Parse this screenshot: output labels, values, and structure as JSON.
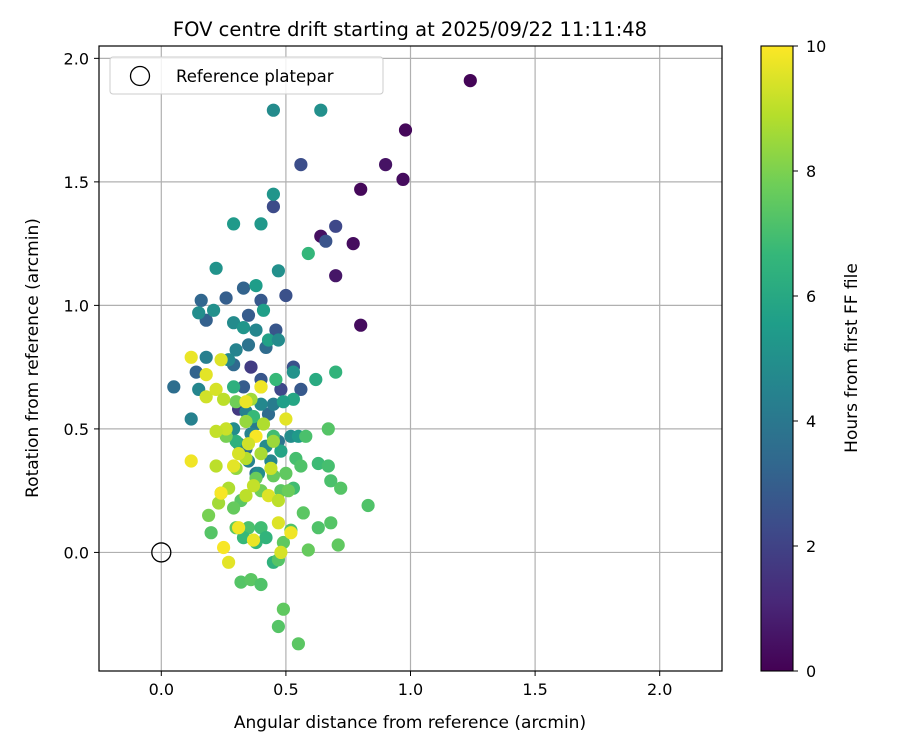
{
  "chart_data": {
    "type": "scatter",
    "title": "FOV centre drift starting at 2025/09/22 11:11:48",
    "xlabel": "Angular distance from reference (arcmin)",
    "ylabel": "Rotation from reference (arcmin)",
    "xlim": [
      -0.25,
      2.25
    ],
    "ylim": [
      -0.48,
      2.05
    ],
    "xticks": [
      0.0,
      0.5,
      1.0,
      1.5,
      2.0
    ],
    "xtick_labels": [
      "0.0",
      "0.5",
      "1.0",
      "1.5",
      "2.0"
    ],
    "yticks": [
      0.0,
      0.5,
      1.0,
      1.5,
      2.0
    ],
    "ytick_labels": [
      "0.0",
      "0.5",
      "1.0",
      "1.5",
      "2.0"
    ],
    "grid": true,
    "legend": {
      "label": "Reference platepar",
      "location": "upper-left"
    },
    "reference_point": {
      "x": 0.0,
      "y": 0.0
    },
    "colorbar": {
      "label": "Hours from first FF file",
      "range": [
        0,
        10
      ],
      "ticks": [
        0,
        2,
        4,
        6,
        8,
        10
      ],
      "tick_labels": [
        "0",
        "2",
        "4",
        "6",
        "8",
        "10"
      ],
      "colormap": "viridis",
      "stops": [
        "#440154",
        "#482878",
        "#3e4989",
        "#31688e",
        "#26828e",
        "#1f9e89",
        "#35b779",
        "#6ece58",
        "#b5de2b",
        "#fde725"
      ]
    },
    "points": [
      {
        "x": 1.24,
        "y": 1.91,
        "c": 0.1
      },
      {
        "x": 0.98,
        "y": 1.71,
        "c": 0.2
      },
      {
        "x": 0.9,
        "y": 1.57,
        "c": 0.5
      },
      {
        "x": 0.97,
        "y": 1.51,
        "c": 0.3
      },
      {
        "x": 0.8,
        "y": 1.47,
        "c": 0.2
      },
      {
        "x": 0.77,
        "y": 1.25,
        "c": 0.3
      },
      {
        "x": 0.64,
        "y": 1.28,
        "c": 0.4
      },
      {
        "x": 0.7,
        "y": 1.12,
        "c": 0.6
      },
      {
        "x": 0.8,
        "y": 0.92,
        "c": 0.3
      },
      {
        "x": 0.7,
        "y": 1.32,
        "c": 2.2
      },
      {
        "x": 0.66,
        "y": 1.26,
        "c": 2.6
      },
      {
        "x": 0.56,
        "y": 1.57,
        "c": 2.4
      },
      {
        "x": 0.45,
        "y": 1.4,
        "c": 2.3
      },
      {
        "x": 0.5,
        "y": 1.04,
        "c": 2.5
      },
      {
        "x": 0.4,
        "y": 1.02,
        "c": 2.8
      },
      {
        "x": 0.33,
        "y": 1.07,
        "c": 3.2
      },
      {
        "x": 0.26,
        "y": 1.03,
        "c": 3.0
      },
      {
        "x": 0.16,
        "y": 1.02,
        "c": 3.3
      },
      {
        "x": 0.18,
        "y": 0.94,
        "c": 3.1
      },
      {
        "x": 0.35,
        "y": 0.96,
        "c": 2.9
      },
      {
        "x": 0.46,
        "y": 0.9,
        "c": 2.7
      },
      {
        "x": 0.42,
        "y": 0.83,
        "c": 3.5
      },
      {
        "x": 0.35,
        "y": 0.84,
        "c": 3.8
      },
      {
        "x": 0.29,
        "y": 0.76,
        "c": 3.4
      },
      {
        "x": 0.14,
        "y": 0.73,
        "c": 3.2
      },
      {
        "x": 0.05,
        "y": 0.67,
        "c": 3.6
      },
      {
        "x": 0.33,
        "y": 0.67,
        "c": 2.9
      },
      {
        "x": 0.4,
        "y": 0.7,
        "c": 2.7
      },
      {
        "x": 0.53,
        "y": 0.75,
        "c": 2.5
      },
      {
        "x": 0.56,
        "y": 0.66,
        "c": 2.8
      },
      {
        "x": 0.48,
        "y": 0.66,
        "c": 2.2
      },
      {
        "x": 0.36,
        "y": 0.75,
        "c": 1.8
      },
      {
        "x": 0.31,
        "y": 0.58,
        "c": 1.7
      },
      {
        "x": 0.43,
        "y": 0.56,
        "c": 3.5
      },
      {
        "x": 0.47,
        "y": 0.45,
        "c": 3.9
      },
      {
        "x": 0.38,
        "y": 0.52,
        "c": 4.1
      },
      {
        "x": 0.34,
        "y": 0.42,
        "c": 3.7
      },
      {
        "x": 0.38,
        "y": 0.32,
        "c": 3.9
      },
      {
        "x": 0.45,
        "y": 1.79,
        "c": 4.8
      },
      {
        "x": 0.64,
        "y": 1.79,
        "c": 5.0
      },
      {
        "x": 0.45,
        "y": 1.45,
        "c": 5.2
      },
      {
        "x": 0.29,
        "y": 1.33,
        "c": 5.4
      },
      {
        "x": 0.4,
        "y": 1.33,
        "c": 5.3
      },
      {
        "x": 0.22,
        "y": 1.15,
        "c": 5.1
      },
      {
        "x": 0.47,
        "y": 1.14,
        "c": 5.0
      },
      {
        "x": 0.38,
        "y": 1.08,
        "c": 5.5
      },
      {
        "x": 0.15,
        "y": 0.97,
        "c": 4.9
      },
      {
        "x": 0.21,
        "y": 0.98,
        "c": 5.0
      },
      {
        "x": 0.29,
        "y": 0.93,
        "c": 4.8
      },
      {
        "x": 0.33,
        "y": 0.91,
        "c": 5.2
      },
      {
        "x": 0.38,
        "y": 0.9,
        "c": 4.6
      },
      {
        "x": 0.43,
        "y": 0.86,
        "c": 5.7
      },
      {
        "x": 0.41,
        "y": 0.98,
        "c": 5.6
      },
      {
        "x": 0.3,
        "y": 0.82,
        "c": 4.5
      },
      {
        "x": 0.27,
        "y": 0.78,
        "c": 4.7
      },
      {
        "x": 0.18,
        "y": 0.79,
        "c": 4.3
      },
      {
        "x": 0.12,
        "y": 0.54,
        "c": 4.4
      },
      {
        "x": 0.15,
        "y": 0.66,
        "c": 4.6
      },
      {
        "x": 0.47,
        "y": 0.86,
        "c": 4.8
      },
      {
        "x": 0.53,
        "y": 0.73,
        "c": 5.1
      },
      {
        "x": 0.45,
        "y": 0.6,
        "c": 4.2
      },
      {
        "x": 0.4,
        "y": 0.6,
        "c": 4.7
      },
      {
        "x": 0.34,
        "y": 0.57,
        "c": 4.4
      },
      {
        "x": 0.29,
        "y": 0.5,
        "c": 4.9
      },
      {
        "x": 0.36,
        "y": 0.48,
        "c": 4.5
      },
      {
        "x": 0.31,
        "y": 0.44,
        "c": 4.6
      },
      {
        "x": 0.42,
        "y": 0.43,
        "c": 4.8
      },
      {
        "x": 0.52,
        "y": 0.47,
        "c": 4.9
      },
      {
        "x": 0.55,
        "y": 0.47,
        "c": 5.4
      },
      {
        "x": 0.48,
        "y": 0.41,
        "c": 5.8
      },
      {
        "x": 0.44,
        "y": 0.37,
        "c": 4.6
      },
      {
        "x": 0.35,
        "y": 0.37,
        "c": 4.4
      },
      {
        "x": 0.39,
        "y": 0.32,
        "c": 4.9
      },
      {
        "x": 0.53,
        "y": 0.62,
        "c": 5.9
      },
      {
        "x": 0.49,
        "y": 0.61,
        "c": 5.6
      },
      {
        "x": 0.62,
        "y": 0.7,
        "c": 6.1
      },
      {
        "x": 0.7,
        "y": 0.73,
        "c": 6.5
      },
      {
        "x": 0.59,
        "y": 1.21,
        "c": 6.6
      },
      {
        "x": 0.46,
        "y": 0.7,
        "c": 6.7
      },
      {
        "x": 0.29,
        "y": 0.67,
        "c": 6.3
      },
      {
        "x": 0.37,
        "y": 0.55,
        "c": 6.7
      },
      {
        "x": 0.3,
        "y": 0.45,
        "c": 6.4
      },
      {
        "x": 0.45,
        "y": 0.47,
        "c": 6.9
      },
      {
        "x": 0.58,
        "y": 0.47,
        "c": 7.1
      },
      {
        "x": 0.67,
        "y": 0.5,
        "c": 7.3
      },
      {
        "x": 0.54,
        "y": 0.38,
        "c": 7.0
      },
      {
        "x": 0.56,
        "y": 0.35,
        "c": 7.2
      },
      {
        "x": 0.63,
        "y": 0.36,
        "c": 6.8
      },
      {
        "x": 0.67,
        "y": 0.35,
        "c": 7.0
      },
      {
        "x": 0.68,
        "y": 0.29,
        "c": 7.1
      },
      {
        "x": 0.72,
        "y": 0.26,
        "c": 7.3
      },
      {
        "x": 0.83,
        "y": 0.19,
        "c": 7.2
      },
      {
        "x": 0.53,
        "y": 0.26,
        "c": 6.9
      },
      {
        "x": 0.48,
        "y": 0.25,
        "c": 7.4
      },
      {
        "x": 0.45,
        "y": 0.31,
        "c": 7.6
      },
      {
        "x": 0.5,
        "y": 0.32,
        "c": 7.5
      },
      {
        "x": 0.38,
        "y": 0.3,
        "c": 7.7
      },
      {
        "x": 0.4,
        "y": 0.25,
        "c": 7.8
      },
      {
        "x": 0.32,
        "y": 0.21,
        "c": 7.4
      },
      {
        "x": 0.29,
        "y": 0.18,
        "c": 7.6
      },
      {
        "x": 0.19,
        "y": 0.15,
        "c": 7.9
      },
      {
        "x": 0.2,
        "y": 0.08,
        "c": 7.3
      },
      {
        "x": 0.3,
        "y": 0.1,
        "c": 7.5
      },
      {
        "x": 0.35,
        "y": 0.1,
        "c": 7.1
      },
      {
        "x": 0.4,
        "y": 0.1,
        "c": 6.9
      },
      {
        "x": 0.38,
        "y": 0.04,
        "c": 6.6
      },
      {
        "x": 0.33,
        "y": 0.06,
        "c": 6.7
      },
      {
        "x": 0.42,
        "y": 0.06,
        "c": 6.5
      },
      {
        "x": 0.45,
        "y": -0.04,
        "c": 6.4
      },
      {
        "x": 0.47,
        "y": -0.03,
        "c": 7.3
      },
      {
        "x": 0.49,
        "y": 0.04,
        "c": 7.5
      },
      {
        "x": 0.52,
        "y": 0.09,
        "c": 7.2
      },
      {
        "x": 0.57,
        "y": 0.16,
        "c": 7.4
      },
      {
        "x": 0.59,
        "y": 0.01,
        "c": 7.6
      },
      {
        "x": 0.63,
        "y": 0.1,
        "c": 7.2
      },
      {
        "x": 0.68,
        "y": 0.12,
        "c": 7.3
      },
      {
        "x": 0.71,
        "y": 0.03,
        "c": 7.5
      },
      {
        "x": 0.32,
        "y": -0.12,
        "c": 7.3
      },
      {
        "x": 0.36,
        "y": -0.11,
        "c": 7.4
      },
      {
        "x": 0.4,
        "y": -0.13,
        "c": 7.2
      },
      {
        "x": 0.49,
        "y": -0.23,
        "c": 7.5
      },
      {
        "x": 0.47,
        "y": -0.3,
        "c": 7.3
      },
      {
        "x": 0.55,
        "y": -0.37,
        "c": 7.4
      },
      {
        "x": 0.51,
        "y": 0.25,
        "c": 7.7
      },
      {
        "x": 0.26,
        "y": 0.47,
        "c": 7.9
      },
      {
        "x": 0.3,
        "y": 0.61,
        "c": 7.8
      },
      {
        "x": 0.4,
        "y": 0.67,
        "c": 8.2
      },
      {
        "x": 0.36,
        "y": 0.62,
        "c": 8.6
      },
      {
        "x": 0.34,
        "y": 0.53,
        "c": 8.4
      },
      {
        "x": 0.41,
        "y": 0.52,
        "c": 8.8
      },
      {
        "x": 0.45,
        "y": 0.45,
        "c": 8.5
      },
      {
        "x": 0.4,
        "y": 0.4,
        "c": 8.7
      },
      {
        "x": 0.34,
        "y": 0.38,
        "c": 8.9
      },
      {
        "x": 0.3,
        "y": 0.34,
        "c": 8.3
      },
      {
        "x": 0.27,
        "y": 0.26,
        "c": 8.8
      },
      {
        "x": 0.24,
        "y": 0.24,
        "c": 8.1
      },
      {
        "x": 0.23,
        "y": 0.2,
        "c": 8.6
      },
      {
        "x": 0.22,
        "y": 0.35,
        "c": 9.0
      },
      {
        "x": 0.26,
        "y": 0.5,
        "c": 9.2
      },
      {
        "x": 0.22,
        "y": 0.49,
        "c": 9.1
      },
      {
        "x": 0.18,
        "y": 0.63,
        "c": 9.3
      },
      {
        "x": 0.22,
        "y": 0.66,
        "c": 9.4
      },
      {
        "x": 0.25,
        "y": 0.62,
        "c": 9.0
      },
      {
        "x": 0.24,
        "y": 0.78,
        "c": 9.5
      },
      {
        "x": 0.18,
        "y": 0.72,
        "c": 9.6
      },
      {
        "x": 0.12,
        "y": 0.79,
        "c": 9.7
      },
      {
        "x": 0.12,
        "y": 0.37,
        "c": 9.8
      },
      {
        "x": 0.29,
        "y": 0.35,
        "c": 9.6
      },
      {
        "x": 0.34,
        "y": 0.61,
        "c": 9.7
      },
      {
        "x": 0.4,
        "y": 0.67,
        "c": 9.8
      },
      {
        "x": 0.38,
        "y": 0.47,
        "c": 9.9
      },
      {
        "x": 0.35,
        "y": 0.44,
        "c": 9.3
      },
      {
        "x": 0.31,
        "y": 0.4,
        "c": 9.4
      },
      {
        "x": 0.44,
        "y": 0.34,
        "c": 9.2
      },
      {
        "x": 0.37,
        "y": 0.27,
        "c": 9.1
      },
      {
        "x": 0.34,
        "y": 0.23,
        "c": 9.0
      },
      {
        "x": 0.43,
        "y": 0.23,
        "c": 9.5
      },
      {
        "x": 0.47,
        "y": 0.21,
        "c": 9.0
      },
      {
        "x": 0.5,
        "y": 0.54,
        "c": 9.6
      },
      {
        "x": 0.52,
        "y": 0.08,
        "c": 9.8
      },
      {
        "x": 0.47,
        "y": 0.12,
        "c": 9.5
      },
      {
        "x": 0.37,
        "y": 0.05,
        "c": 9.7
      },
      {
        "x": 0.31,
        "y": 0.1,
        "c": 9.8
      },
      {
        "x": 0.25,
        "y": 0.02,
        "c": 9.9
      },
      {
        "x": 0.27,
        "y": -0.04,
        "c": 9.6
      },
      {
        "x": 0.48,
        "y": 0.0,
        "c": 9.4
      },
      {
        "x": 0.24,
        "y": 0.24,
        "c": 9.9
      }
    ]
  }
}
